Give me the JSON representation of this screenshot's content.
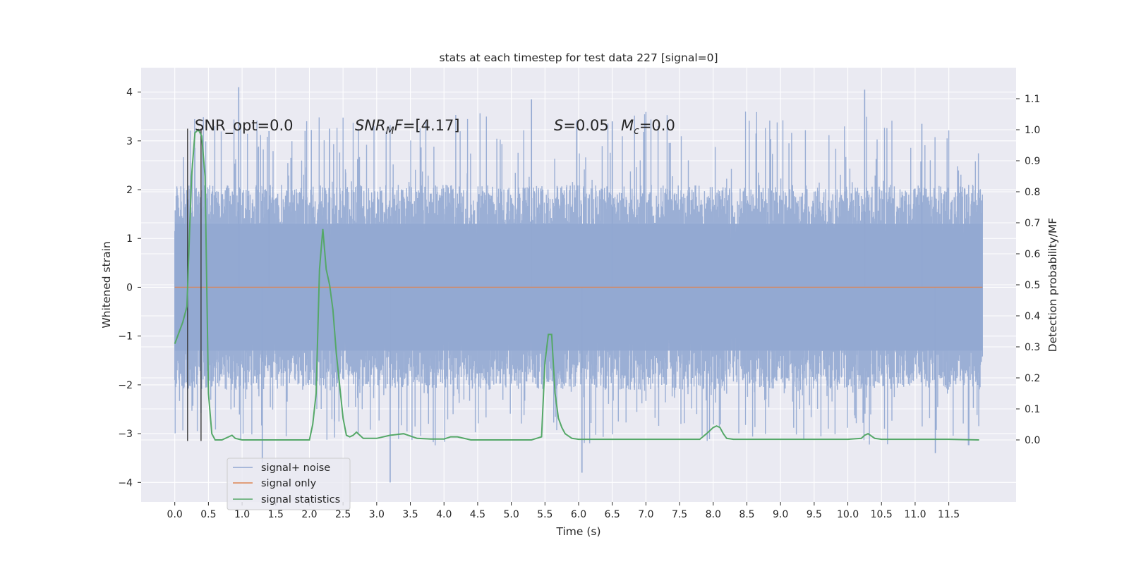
{
  "chart_data": {
    "type": "line",
    "title": "stats at each timestep for test data 227 [signal=0]",
    "xlabel": "Time (s)",
    "ylabel_left": "Whitened strain",
    "ylabel_right": "Detection probability/MF",
    "xlim": [
      -0.5,
      12.5
    ],
    "ylim_left": [
      -4.4,
      4.5
    ],
    "ylim_right": [
      -0.2,
      1.2
    ],
    "x_ticks": [
      0.0,
      0.5,
      1.0,
      1.5,
      2.0,
      2.5,
      3.0,
      3.5,
      4.0,
      4.5,
      5.0,
      5.5,
      6.0,
      6.5,
      7.0,
      7.5,
      8.0,
      8.5,
      9.0,
      9.5,
      10.0,
      10.5,
      11.0,
      11.5
    ],
    "x_tick_labels": [
      "0.0",
      "0.5",
      "1.0",
      "1.5",
      "2.0",
      "2.5",
      "3.0",
      "3.5",
      "4.0",
      "4.5",
      "5.0",
      "5.5",
      "6.0",
      "6.5",
      "7.0",
      "7.5",
      "8.0",
      "8.5",
      "9.0",
      "9.5",
      "10.0",
      "10.5",
      "11.0",
      "11.5"
    ],
    "y_ticks_left": [
      -4,
      -3,
      -2,
      -1,
      0,
      1,
      2,
      3,
      4
    ],
    "y_tick_labels_left": [
      "−4",
      "−3",
      "−2",
      "−1",
      "0",
      "1",
      "2",
      "3",
      "4"
    ],
    "y_ticks_right": [
      0.0,
      0.1,
      0.2,
      0.3,
      0.4,
      0.5,
      0.6,
      0.7,
      0.8,
      0.9,
      1.0,
      1.1
    ],
    "y_tick_labels_right": [
      "0.0",
      "0.1",
      "0.2",
      "0.3",
      "0.4",
      "0.5",
      "0.6",
      "0.7",
      "0.8",
      "0.9",
      "1.0",
      "1.1"
    ],
    "grid": true,
    "legend_position": "lower-left",
    "annotations": {
      "snr_opt": "SNR_opt=0.0",
      "snr_mf_prefix": "SNR",
      "snr_mf_sub": "M",
      "snr_mf_mid": "F",
      "snr_mf_value": "=[4.17]",
      "s_label": "S",
      "s_value": "=0.05",
      "mc_label": "M",
      "mc_sub": "c",
      "mc_value": "=0.0"
    },
    "series": [
      {
        "name": "signal+ noise",
        "color": "#92a8d1",
        "description_value": "noise band",
        "noise_band_left": [
          -2.1,
          2.1
        ],
        "peak_max": 4.1,
        "peak_min": -4.0,
        "x_range": [
          0.0,
          12.0
        ]
      },
      {
        "name": "signal only",
        "color": "#dd8452",
        "x": [
          0.0,
          12.0
        ],
        "y": [
          0.0,
          0.0
        ]
      },
      {
        "name": "signal statistics",
        "color": "#55a868",
        "x": [
          0.0,
          0.12,
          0.18,
          0.25,
          0.3,
          0.35,
          0.4,
          0.45,
          0.5,
          0.55,
          0.6,
          0.7,
          0.8,
          0.85,
          0.9,
          1.0,
          1.5,
          2.0,
          2.05,
          2.1,
          2.15,
          2.2,
          2.25,
          2.3,
          2.35,
          2.4,
          2.5,
          2.55,
          2.6,
          2.65,
          2.7,
          2.75,
          2.8,
          3.0,
          3.2,
          3.4,
          3.6,
          3.8,
          4.0,
          4.1,
          4.2,
          4.4,
          5.0,
          5.3,
          5.45,
          5.5,
          5.55,
          5.6,
          5.65,
          5.7,
          5.75,
          5.8,
          5.9,
          6.0,
          6.5,
          7.0,
          7.5,
          7.8,
          7.9,
          8.0,
          8.05,
          8.1,
          8.15,
          8.2,
          8.3,
          9.0,
          10.0,
          10.2,
          10.25,
          10.3,
          10.4,
          10.5,
          11.0,
          11.5,
          11.95
        ],
        "y": [
          0.31,
          0.38,
          0.43,
          0.85,
          0.99,
          1.0,
          0.98,
          0.85,
          0.15,
          0.02,
          0.0,
          0.0,
          0.01,
          0.015,
          0.005,
          0.0,
          0.0,
          0.0,
          0.05,
          0.15,
          0.55,
          0.68,
          0.55,
          0.5,
          0.42,
          0.28,
          0.07,
          0.015,
          0.01,
          0.015,
          0.025,
          0.015,
          0.005,
          0.005,
          0.015,
          0.02,
          0.005,
          0.003,
          0.003,
          0.01,
          0.01,
          0.0,
          0.0,
          0.0,
          0.01,
          0.25,
          0.34,
          0.34,
          0.15,
          0.07,
          0.04,
          0.02,
          0.005,
          0.002,
          0.002,
          0.002,
          0.002,
          0.002,
          0.02,
          0.04,
          0.045,
          0.04,
          0.02,
          0.005,
          0.002,
          0.002,
          0.002,
          0.005,
          0.015,
          0.02,
          0.005,
          0.002,
          0.002,
          0.002,
          0.0
        ]
      }
    ],
    "vertical_markers": [
      {
        "x": 0.19,
        "y_top_left": 3.25,
        "y_bottom_left": -3.15
      },
      {
        "x": 0.39,
        "y_top_left": 3.25,
        "y_bottom_left": -3.15
      }
    ]
  }
}
